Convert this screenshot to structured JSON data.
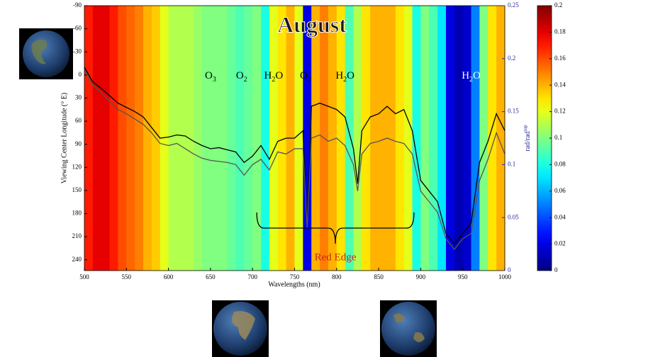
{
  "chart_data": {
    "type": "heatmap",
    "title": "August",
    "xlabel": "Wavelengths (nm)",
    "ylabel": "Viewing Center Longitude (° E)",
    "y2label": {
      "text": "rad/rad",
      "sup": "top"
    },
    "xlim": [
      500,
      1000
    ],
    "xticks": [
      500,
      550,
      600,
      650,
      700,
      750,
      800,
      850,
      900,
      950,
      1000
    ],
    "ylim": [
      254,
      -90
    ],
    "yticks": [
      -90,
      -60,
      -30,
      0,
      30,
      60,
      90,
      120,
      150,
      180,
      210,
      240
    ],
    "y2lim": [
      0,
      0.25
    ],
    "y2ticks": [
      0,
      0.05,
      0.1,
      0.15,
      0.2,
      0.25
    ],
    "colormap": "jet",
    "colorbar": {
      "lim": [
        0,
        0.2
      ],
      "ticks": [
        0,
        0.02,
        0.04,
        0.06,
        0.08,
        0.1,
        0.12,
        0.14,
        0.16,
        0.18,
        0.2
      ]
    },
    "heatmap": {
      "bins": [
        500,
        510,
        520,
        530,
        540,
        550,
        560,
        570,
        580,
        590,
        600,
        610,
        620,
        630,
        640,
        650,
        660,
        670,
        680,
        690,
        700,
        710,
        720,
        730,
        740,
        750,
        760,
        770,
        780,
        790,
        800,
        810,
        820,
        830,
        840,
        850,
        860,
        870,
        880,
        890,
        900,
        910,
        920,
        930,
        940,
        950,
        960,
        970,
        980,
        990,
        1000
      ],
      "values": [
        0.17,
        0.18,
        0.18,
        0.17,
        0.16,
        0.155,
        0.15,
        0.14,
        0.135,
        0.12,
        0.11,
        0.11,
        0.11,
        0.105,
        0.1,
        0.1,
        0.1,
        0.095,
        0.09,
        0.095,
        0.1,
        0.08,
        0.12,
        0.13,
        0.14,
        0.12,
        0.02,
        0.14,
        0.15,
        0.14,
        0.13,
        0.09,
        0.11,
        0.13,
        0.14,
        0.14,
        0.14,
        0.13,
        0.12,
        0.08,
        0.1,
        0.09,
        0.07,
        0.02,
        0.01,
        0.015,
        0.05,
        0.1,
        0.13,
        0.14
      ]
    },
    "x": [
      500,
      510,
      520,
      530,
      540,
      550,
      560,
      570,
      580,
      590,
      600,
      610,
      620,
      630,
      640,
      650,
      660,
      670,
      680,
      690,
      700,
      710,
      720,
      730,
      740,
      750,
      760,
      765,
      770,
      780,
      790,
      800,
      810,
      820,
      825,
      830,
      840,
      850,
      860,
      870,
      880,
      890,
      900,
      910,
      920,
      930,
      940,
      950,
      960,
      970,
      980,
      990,
      1000
    ],
    "series": [
      {
        "color": "#000000",
        "axis": "y2",
        "values": [
          0.192,
          0.178,
          0.172,
          0.165,
          0.158,
          0.154,
          0.15,
          0.145,
          0.135,
          0.125,
          0.126,
          0.128,
          0.127,
          0.122,
          0.118,
          0.115,
          0.116,
          0.114,
          0.112,
          0.102,
          0.108,
          0.118,
          0.105,
          0.122,
          0.125,
          0.125,
          0.132,
          0.041,
          0.155,
          0.158,
          0.155,
          0.152,
          0.145,
          0.115,
          0.082,
          0.132,
          0.145,
          0.148,
          0.155,
          0.148,
          0.152,
          0.132,
          0.085,
          0.075,
          0.065,
          0.035,
          0.025,
          0.035,
          0.045,
          0.102,
          0.122,
          0.148,
          0.132
        ]
      },
      {
        "color": "#555555",
        "axis": "y2",
        "values": [
          0.19,
          0.175,
          0.168,
          0.16,
          0.152,
          0.148,
          0.143,
          0.138,
          0.13,
          0.12,
          0.118,
          0.12,
          0.115,
          0.11,
          0.106,
          0.104,
          0.103,
          0.102,
          0.1,
          0.09,
          0.1,
          0.105,
          0.095,
          0.112,
          0.11,
          0.115,
          0.115,
          0.04,
          0.125,
          0.128,
          0.122,
          0.125,
          0.118,
          0.1,
          0.075,
          0.11,
          0.12,
          0.122,
          0.125,
          0.122,
          0.12,
          0.11,
          0.075,
          0.065,
          0.055,
          0.03,
          0.02,
          0.03,
          0.035,
          0.085,
          0.105,
          0.13,
          0.11
        ]
      }
    ],
    "annotations": [
      {
        "text": "O",
        "sub": "3",
        "x": 650
      },
      {
        "text": "O",
        "sub": "2",
        "x": 687
      },
      {
        "text": "H",
        "sub": "2",
        "tail": "O",
        "x": 725
      },
      {
        "text": "O",
        "sub": "2",
        "x": 763
      },
      {
        "text": "H",
        "sub": "2",
        "tail": "O",
        "x": 810
      },
      {
        "text": "H",
        "sub": "2",
        "tail": "O",
        "x": 960,
        "color": "#ffffff"
      }
    ],
    "bracket": {
      "text": "Red Edge",
      "x": [
        705,
        892
      ],
      "color": "#cc2222"
    }
  }
}
